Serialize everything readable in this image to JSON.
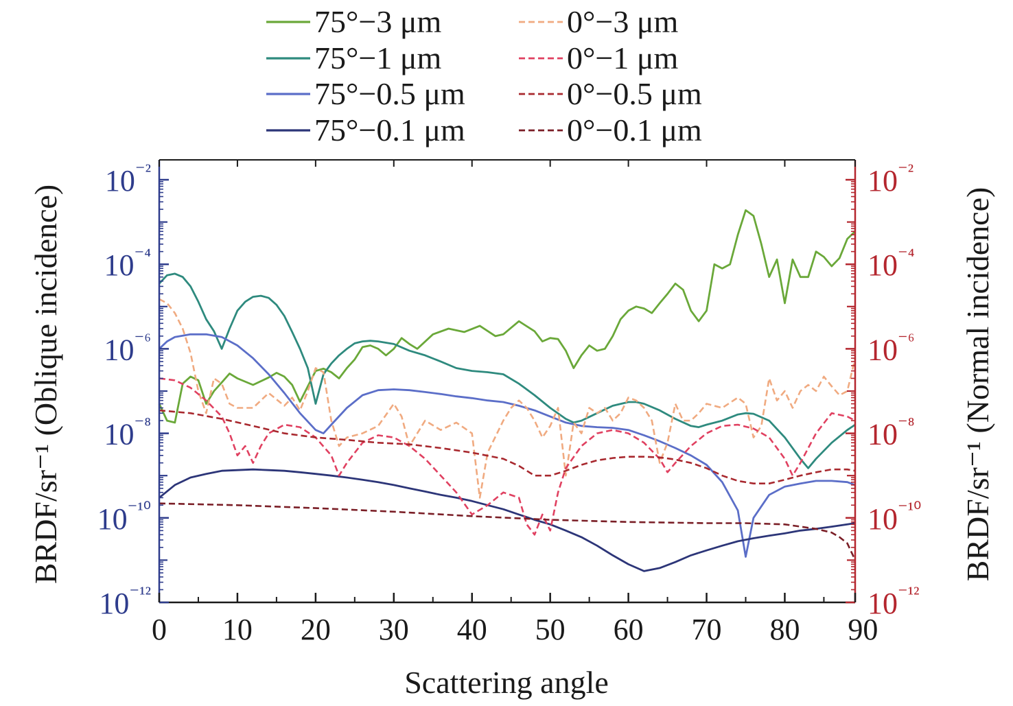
{
  "chart_data": {
    "type": "line",
    "xlabel": "Scattering angle",
    "ylabel_left": "BRDF/sr⁻¹ (Oblique incidence)",
    "ylabel_right": "BRDF/sr⁻¹ (Normal incidence)",
    "xlim": [
      0,
      89
    ],
    "ylim": [
      1e-12,
      0.01
    ],
    "yscale": "log",
    "x_ticks": [
      "0",
      "10",
      "20",
      "30",
      "40",
      "50",
      "60",
      "70",
      "80",
      "90"
    ],
    "y_ticks_left": [
      "10⁻¹²",
      "10⁻¹⁰",
      "10⁻⁸",
      "10⁻⁶",
      "10⁻⁴",
      "10⁻²"
    ],
    "y_ticks_right": [
      "10⁻¹²",
      "10⁻¹⁰",
      "10⁻⁸",
      "10⁻⁶",
      "10⁻⁴",
      "10⁻²"
    ],
    "left_axis_color": "#2e3c8c",
    "right_axis_color": "#b4262e",
    "legend_position": "top",
    "series": [
      {
        "name": "75°−3 μm",
        "color": "#6aa839",
        "dash": "solid",
        "x": [
          0,
          1,
          2,
          3,
          4,
          5,
          6,
          7,
          8,
          9,
          10,
          12,
          14,
          15,
          16,
          17,
          18,
          19,
          20,
          21,
          22,
          23,
          24,
          25,
          26,
          27,
          28,
          29,
          30,
          31,
          32,
          33,
          35,
          37,
          39,
          41,
          43,
          44,
          46,
          48,
          49,
          50,
          51,
          52,
          53,
          54,
          55,
          56,
          57,
          58,
          59,
          60,
          61,
          62,
          63,
          64,
          65,
          66,
          67,
          68,
          69,
          70,
          71,
          72,
          73,
          74,
          75,
          76,
          77,
          78,
          79,
          80,
          81,
          82,
          83,
          84,
          85,
          86,
          87,
          88,
          89
        ],
        "y": [
          5e-08,
          2e-08,
          1.8e-08,
          1.5e-07,
          2.2e-07,
          1.8e-07,
          5e-08,
          1e-07,
          1.6e-07,
          2.6e-07,
          2e-07,
          1.4e-07,
          2.1e-07,
          2.7e-07,
          2.2e-07,
          1.4e-07,
          5.6e-08,
          1.3e-07,
          3e-07,
          3.4e-07,
          2.8e-07,
          2e-07,
          3.5e-07,
          5.6e-07,
          1.1e-06,
          1.2e-06,
          1e-06,
          7e-07,
          1e-06,
          1.8e-06,
          1.3e-06,
          1e-06,
          2.2e-06,
          3e-06,
          2.5e-06,
          3.5e-06,
          2e-06,
          2.2e-06,
          4.5e-06,
          2.6e-06,
          1.5e-06,
          1.8e-06,
          1.7e-06,
          9e-07,
          3.5e-07,
          7e-07,
          1.2e-06,
          9e-07,
          1e-06,
          2e-06,
          5e-06,
          8e-06,
          1e-05,
          9e-06,
          7e-06,
          1.2e-05,
          2e-05,
          3.5e-05,
          2.5e-05,
          8e-06,
          4.5e-06,
          8e-06,
          0.0001,
          8e-05,
          0.0001,
          0.0005,
          0.0019,
          0.0014,
          0.0003,
          5e-05,
          0.00013,
          1.2e-05,
          0.00013,
          5e-05,
          5e-05,
          0.0002,
          0.00015,
          9e-05,
          0.00014,
          0.0004,
          0.0006
        ]
      },
      {
        "name": "75°−1 μm",
        "color": "#2e8a7e",
        "dash": "solid",
        "x": [
          0,
          1,
          2,
          3,
          4,
          5,
          6,
          7,
          8,
          9,
          10,
          11,
          12,
          13,
          14,
          15,
          16,
          17,
          18,
          19,
          20,
          21,
          22,
          23,
          24,
          25,
          26,
          27,
          28,
          30,
          32,
          34,
          36,
          38,
          40,
          42,
          44,
          46,
          48,
          50,
          52,
          53,
          54,
          56,
          58,
          60,
          61,
          62,
          64,
          66,
          68,
          69,
          70,
          72,
          74,
          75,
          76,
          78,
          80,
          82,
          83,
          84,
          86,
          88,
          89
        ],
        "y": [
          3.5e-05,
          5.5e-05,
          6e-05,
          5e-05,
          3e-05,
          1.3e-05,
          5e-06,
          2.6e-06,
          1e-06,
          3e-06,
          8e-06,
          1.3e-05,
          1.7e-05,
          1.8e-05,
          1.6e-05,
          1.1e-05,
          6e-06,
          2.5e-06,
          1e-06,
          3.5e-07,
          5e-08,
          2.5e-07,
          4.5e-07,
          7e-07,
          1e-06,
          1.35e-06,
          1.5e-06,
          1.55e-06,
          1.5e-06,
          1.3e-06,
          9e-07,
          7e-07,
          5e-07,
          3.5e-07,
          3e-07,
          2.8e-07,
          2.5e-07,
          1.5e-07,
          8e-08,
          4e-08,
          2.2e-08,
          1.8e-08,
          2e-08,
          3e-08,
          4.5e-08,
          5.5e-08,
          5.5e-08,
          5e-08,
          3.5e-08,
          2.2e-08,
          1.5e-08,
          1.4e-08,
          1.6e-08,
          2e-08,
          2.8e-08,
          3e-08,
          2.9e-08,
          2e-08,
          8e-09,
          2.5e-09,
          1.5e-09,
          2.5e-09,
          6e-09,
          1.2e-08,
          1.6e-08
        ]
      },
      {
        "name": "75°−0.5 μm",
        "color": "#5b6ec8",
        "dash": "solid",
        "x": [
          0,
          1,
          2,
          4,
          6,
          8,
          10,
          12,
          14,
          16,
          18,
          20,
          21,
          22,
          24,
          26,
          28,
          30,
          32,
          34,
          36,
          38,
          40,
          42,
          44,
          46,
          48,
          50,
          52,
          54,
          56,
          58,
          60,
          62,
          64,
          66,
          68,
          70,
          72,
          74,
          75,
          76,
          78,
          80,
          82,
          84,
          86,
          88,
          89
        ],
        "y": [
          1e-06,
          1.5e-06,
          1.9e-06,
          2.2e-06,
          2.2e-06,
          1.9e-06,
          1.2e-06,
          6e-07,
          2.5e-07,
          9e-08,
          3e-08,
          1.2e-08,
          1e-08,
          1.6e-08,
          4e-08,
          8e-08,
          1.05e-07,
          1.1e-07,
          1.05e-07,
          9.5e-08,
          8.5e-08,
          7.5e-08,
          6.8e-08,
          6e-08,
          5.5e-08,
          4.5e-08,
          3.5e-08,
          2.5e-08,
          1.8e-08,
          1.5e-08,
          1.4e-08,
          1.35e-08,
          1.2e-08,
          9e-09,
          6.5e-09,
          4.5e-09,
          3e-09,
          1.8e-09,
          7e-10,
          1.5e-10,
          1.2e-11,
          1e-10,
          3.5e-10,
          5.5e-10,
          6.5e-10,
          7.5e-10,
          7.5e-10,
          7e-10,
          6e-10
        ]
      },
      {
        "name": "75°−0.1 μm",
        "color": "#2c3578",
        "dash": "solid",
        "x": [
          0,
          2,
          4,
          6,
          8,
          10,
          12,
          14,
          16,
          18,
          20,
          22,
          24,
          26,
          28,
          30,
          32,
          34,
          36,
          38,
          40,
          42,
          44,
          46,
          48,
          50,
          52,
          54,
          56,
          58,
          60,
          62,
          64,
          66,
          68,
          70,
          72,
          74,
          76,
          78,
          80,
          82,
          84,
          86,
          88,
          89
        ],
        "y": [
          3e-10,
          6e-10,
          9e-10,
          1.1e-09,
          1.3e-09,
          1.35e-09,
          1.4e-09,
          1.35e-09,
          1.3e-09,
          1.2e-09,
          1.1e-09,
          1e-09,
          9e-10,
          8e-10,
          7e-10,
          6e-10,
          5e-10,
          4.2e-10,
          3.5e-10,
          3e-10,
          2.5e-10,
          2e-10,
          1.6e-10,
          1.2e-10,
          9e-11,
          7e-11,
          5e-11,
          3.5e-11,
          2.2e-11,
          1.3e-11,
          8e-12,
          5.5e-12,
          6.5e-12,
          9e-12,
          1.3e-11,
          1.7e-11,
          2.2e-11,
          2.8e-11,
          3.3e-11,
          3.8e-11,
          4.3e-11,
          5e-11,
          5.5e-11,
          6.2e-11,
          7e-11,
          7.5e-11
        ]
      },
      {
        "name": "0°−3 μm",
        "color": "#f0aa80",
        "dash": "dashed",
        "x": [
          0,
          1,
          2,
          3,
          4,
          5,
          6,
          7,
          8,
          9,
          10,
          12,
          14,
          16,
          17,
          18,
          19,
          20,
          21,
          22,
          23,
          24,
          26,
          28,
          30,
          31,
          32,
          34,
          36,
          38,
          40,
          41,
          42,
          44,
          45,
          46,
          47,
          48,
          49,
          50,
          51,
          52,
          53,
          54,
          55,
          56,
          57,
          58,
          59,
          60,
          61,
          62,
          63,
          64,
          65,
          66,
          67,
          68,
          69,
          70,
          72,
          74,
          75,
          76,
          77,
          78,
          79,
          80,
          81,
          82,
          83,
          84,
          85,
          86,
          87,
          88,
          89
        ],
        "y": [
          1.5e-05,
          1.2e-05,
          7e-06,
          3e-06,
          8e-07,
          1e-07,
          3e-08,
          2e-07,
          1.5e-07,
          5e-08,
          4e-08,
          4e-08,
          9e-08,
          4.5e-08,
          7e-08,
          3.5e-08,
          1e-07,
          3.5e-07,
          2.8e-07,
          2e-08,
          5e-09,
          8e-09,
          1e-08,
          1.5e-08,
          5e-08,
          2.5e-08,
          5e-09,
          2e-08,
          1.2e-08,
          1.8e-08,
          1e-08,
          3e-10,
          3.5e-09,
          2e-08,
          4e-08,
          6e-08,
          4e-08,
          2e-08,
          8e-09,
          1.5e-08,
          4e-08,
          1e-09,
          1.8e-08,
          1e-08,
          4e-08,
          3e-08,
          4e-08,
          2e-08,
          3e-08,
          7e-08,
          6e-08,
          4e-08,
          2e-08,
          2e-09,
          6e-09,
          5e-08,
          2e-08,
          2e-08,
          3e-08,
          5e-08,
          4e-08,
          7e-08,
          5e-08,
          8e-09,
          1.5e-08,
          2e-07,
          6e-08,
          1e-07,
          4e-08,
          1e-07,
          1.4e-07,
          1e-07,
          2.2e-07,
          1.3e-07,
          8e-08,
          1e-07,
          6e-07
        ]
      },
      {
        "name": "0°−1 μm",
        "color": "#e04060",
        "dash": "dashed",
        "x": [
          0,
          2,
          4,
          6,
          8,
          9,
          10,
          11,
          12,
          13,
          14,
          16,
          18,
          20,
          22,
          23,
          24,
          26,
          28,
          30,
          32,
          34,
          36,
          38,
          40,
          42,
          44,
          46,
          47,
          48,
          49,
          50,
          51,
          52,
          54,
          56,
          58,
          60,
          62,
          64,
          65,
          66,
          68,
          70,
          72,
          74,
          76,
          78,
          80,
          81,
          82,
          84,
          86,
          88,
          89
        ],
        "y": [
          2e-07,
          1.8e-07,
          1.2e-07,
          6e-08,
          2.5e-08,
          1e-08,
          3e-09,
          5e-09,
          2e-09,
          5e-09,
          1e-08,
          1.6e-08,
          1.4e-08,
          8e-09,
          3e-09,
          1e-09,
          2e-09,
          6e-09,
          9e-09,
          8e-09,
          5e-09,
          2.5e-09,
          1e-09,
          4e-10,
          1.2e-10,
          2e-10,
          4e-10,
          3e-10,
          7e-11,
          4e-11,
          1.2e-10,
          5e-11,
          4e-10,
          1.5e-09,
          5e-09,
          1e-08,
          1.2e-08,
          1e-08,
          6e-09,
          2.5e-09,
          1.2e-09,
          2e-09,
          5e-09,
          1e-08,
          1.5e-08,
          1.6e-08,
          1.3e-08,
          8e-09,
          2.5e-09,
          1e-09,
          2e-09,
          1e-08,
          3e-08,
          2.5e-08,
          2e-08
        ]
      },
      {
        "name": "0°−0.5 μm",
        "color": "#a8282e",
        "dash": "dashed",
        "x": [
          0,
          4,
          8,
          12,
          16,
          20,
          24,
          28,
          32,
          36,
          40,
          44,
          46,
          48,
          50,
          52,
          54,
          56,
          58,
          60,
          62,
          64,
          66,
          68,
          70,
          72,
          74,
          76,
          78,
          80,
          82,
          84,
          86,
          88,
          89
        ],
        "y": [
          3.5e-08,
          3e-08,
          2.2e-08,
          1.5e-08,
          1e-08,
          8e-09,
          7e-09,
          6e-09,
          5.5e-09,
          4.5e-09,
          3.5e-09,
          2.5e-09,
          1.7e-09,
          1e-09,
          1e-09,
          1.3e-09,
          1.8e-09,
          2.3e-09,
          2.6e-09,
          2.8e-09,
          2.8e-09,
          2.7e-09,
          2.4e-09,
          2e-09,
          1.5e-09,
          1e-09,
          7.5e-10,
          6.5e-10,
          6.5e-10,
          8e-10,
          1e-09,
          1.2e-09,
          1.4e-09,
          1.4e-09,
          1.3e-09
        ]
      },
      {
        "name": "0°−0.1 μm",
        "color": "#7a1e26",
        "dash": "dashed",
        "x": [
          0,
          10,
          20,
          30,
          40,
          50,
          60,
          70,
          75,
          80,
          84,
          86,
          87,
          88,
          89
        ],
        "y": [
          2.2e-10,
          2e-10,
          1.7e-10,
          1.4e-10,
          1.1e-10,
          9e-11,
          8e-11,
          7.5e-11,
          7.5e-11,
          7e-11,
          5.5e-11,
          4.5e-11,
          3.5e-11,
          2.5e-11,
          1e-11
        ]
      }
    ]
  }
}
